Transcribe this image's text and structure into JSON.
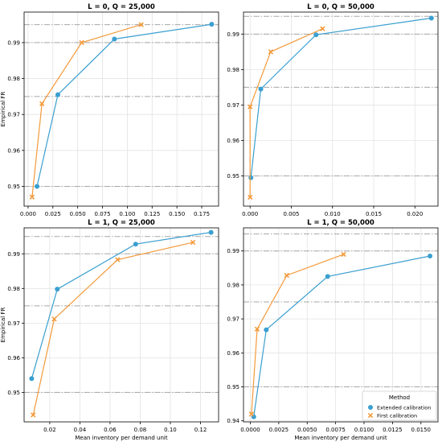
{
  "colors": {
    "extended": "#3a9fd0",
    "first": "#f39a3b",
    "grid": "#e3e3e3",
    "reference_line": "#a7a7a7"
  },
  "legend": {
    "title": "Method",
    "items": [
      "Extended calibration",
      "First calibration"
    ],
    "placement": "lower-right of bottom-right panel"
  },
  "chart_data": [
    {
      "type": "line",
      "title": "L = 0, Q = 25,000",
      "xlabel": "",
      "ylabel": "Empirical FR",
      "xlim": [
        -0.004,
        0.192
      ],
      "ylim": [
        0.9445,
        0.9985
      ],
      "xticks": [
        "0.000",
        "0.025",
        "0.050",
        "0.075",
        "0.100",
        "0.125",
        "0.150",
        "0.175"
      ],
      "xtick_values": [
        0,
        0.025,
        0.05,
        0.075,
        0.1,
        0.125,
        0.15,
        0.175
      ],
      "yticks": [
        "0.95",
        "0.96",
        "0.97",
        "0.98",
        "0.99"
      ],
      "ytick_values": [
        0.95,
        0.96,
        0.97,
        0.98,
        0.99
      ],
      "reference_lines": [
        0.95,
        0.975,
        0.99,
        0.995
      ],
      "grid": true,
      "series": [
        {
          "name": "Extended calibration",
          "marker": "circle",
          "x": [
            0.009,
            0.03,
            0.087,
            0.185
          ],
          "y": [
            0.95,
            0.9755,
            0.991,
            0.9951
          ]
        },
        {
          "name": "First calibration",
          "marker": "x",
          "x": [
            0.004,
            0.014,
            0.054,
            0.114
          ],
          "y": [
            0.947,
            0.973,
            0.99,
            0.995
          ]
        }
      ]
    },
    {
      "type": "line",
      "title": "L = 0, Q = 50,000",
      "xlabel": "",
      "ylabel": "",
      "xlim": [
        -0.0008,
        0.0228
      ],
      "ylim": [
        0.9415,
        0.9962
      ],
      "xticks": [
        "0.000",
        "0.005",
        "0.010",
        "0.015",
        "0.020"
      ],
      "xtick_values": [
        0,
        0.005,
        0.01,
        0.015,
        0.02
      ],
      "yticks": [
        "0.95",
        "0.96",
        "0.97",
        "0.98",
        "0.99"
      ],
      "ytick_values": [
        0.95,
        0.96,
        0.97,
        0.98,
        0.99
      ],
      "reference_lines": [
        0.95,
        0.975,
        0.99,
        0.995
      ],
      "grid": true,
      "series": [
        {
          "name": "Extended calibration",
          "marker": "circle",
          "x": [
            0.0001,
            0.0013,
            0.008,
            0.022
          ],
          "y": [
            0.9495,
            0.9745,
            0.9898,
            0.9945
          ]
        },
        {
          "name": "First calibration",
          "marker": "x",
          "x": [
            0.0,
            0.0,
            0.0025,
            0.0088
          ],
          "y": [
            0.944,
            0.9695,
            0.985,
            0.9915
          ]
        }
      ]
    },
    {
      "type": "line",
      "title": "L = 1, Q = 25,000",
      "xlabel": "Mean inventory per demand unit",
      "ylabel": "Empirical FR",
      "xlim": [
        0.003,
        0.132
      ],
      "ylim": [
        0.9415,
        0.9975
      ],
      "xticks": [
        "0.02",
        "0.04",
        "0.06",
        "0.08",
        "0.10",
        "0.12"
      ],
      "xtick_values": [
        0.02,
        0.04,
        0.06,
        0.08,
        0.1,
        0.12
      ],
      "yticks": [
        "0.95",
        "0.96",
        "0.97",
        "0.98",
        "0.99"
      ],
      "ytick_values": [
        0.95,
        0.96,
        0.97,
        0.98,
        0.99
      ],
      "reference_lines": [
        0.95,
        0.975,
        0.99,
        0.995
      ],
      "grid": true,
      "series": [
        {
          "name": "Extended calibration",
          "marker": "circle",
          "x": [
            0.008,
            0.025,
            0.077,
            0.127
          ],
          "y": [
            0.954,
            0.9798,
            0.9928,
            0.9962
          ]
        },
        {
          "name": "First calibration",
          "marker": "x",
          "x": [
            0.009,
            0.023,
            0.065,
            0.115
          ],
          "y": [
            0.9435,
            0.9712,
            0.9883,
            0.9933
          ]
        }
      ]
    },
    {
      "type": "line",
      "title": "L = 1, Q = 50,000",
      "xlabel": "Mean inventory per demand unit",
      "ylabel": "",
      "xlim": [
        -0.0006,
        0.0165
      ],
      "ylim": [
        0.9397,
        0.9968
      ],
      "xticks": [
        "0.0000",
        "0.0025",
        "0.0050",
        "0.0075",
        "0.0100",
        "0.0125",
        "0.0150"
      ],
      "xtick_values": [
        0,
        0.0025,
        0.005,
        0.0075,
        0.01,
        0.0125,
        0.015
      ],
      "yticks": [
        "0.94",
        "0.95",
        "0.96",
        "0.97",
        "0.98",
        "0.99"
      ],
      "ytick_values": [
        0.94,
        0.95,
        0.96,
        0.97,
        0.98,
        0.99
      ],
      "reference_lines": [
        0.95,
        0.975,
        0.99,
        0.995
      ],
      "grid": true,
      "series": [
        {
          "name": "Extended calibration",
          "marker": "circle",
          "x": [
            0.0003,
            0.0014,
            0.0068,
            0.0158
          ],
          "y": [
            0.9412,
            0.9668,
            0.9825,
            0.9885
          ]
        },
        {
          "name": "First calibration",
          "marker": "x",
          "x": [
            0.0001,
            0.0006,
            0.0032,
            0.0082
          ],
          "y": [
            0.942,
            0.967,
            0.9828,
            0.989
          ]
        }
      ]
    }
  ]
}
